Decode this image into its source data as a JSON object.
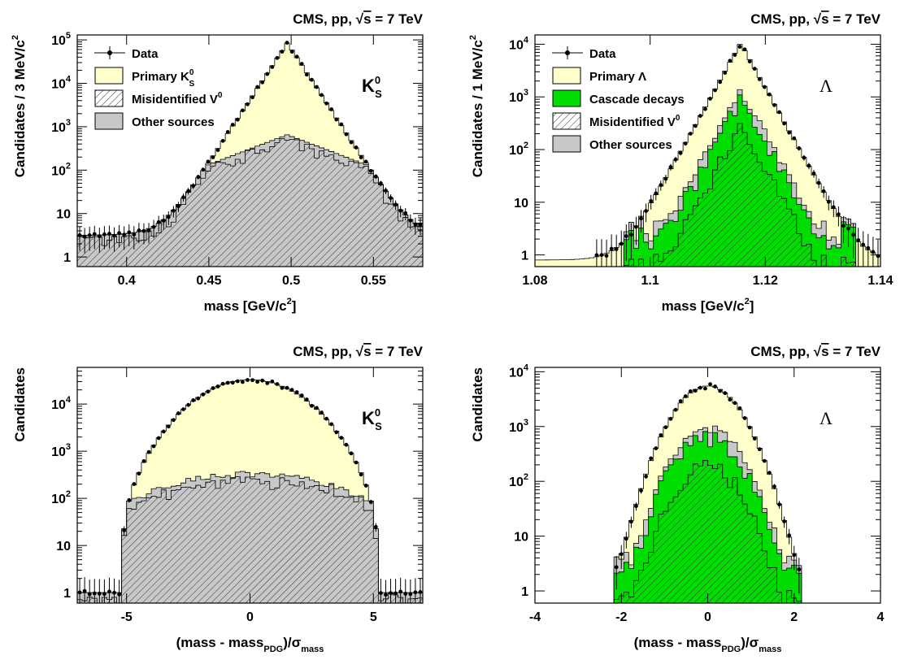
{
  "colors": {
    "primary": "#ffffcc",
    "cascade": "#00dd00",
    "other": "#c8c8c8",
    "hatch_line": "#333333",
    "data": "#000000"
  },
  "chart_data": [
    {
      "type": "histogram",
      "id": "k0s-mass",
      "title": "CMS, pp, √s = 7 TeV",
      "title_parts": {
        "prefix": "CMS, pp, ",
        "sqrt_arg": "s",
        "suffix": " = 7 TeV"
      },
      "particle_label": {
        "main": "K",
        "sup": "0",
        "sub": "S"
      },
      "xlabel": {
        "main": "mass [GeV/c",
        "sup": "2",
        "end": "]"
      },
      "ylabel": {
        "main": "Candidates / 3 MeV/c",
        "sup": "2"
      },
      "x_range": [
        0.37,
        0.58
      ],
      "y_scale": "log",
      "y_range": [
        0.6,
        130000
      ],
      "x_ticks": [
        {
          "value": 0.4,
          "label": "0.4"
        },
        {
          "value": 0.45,
          "label": "0.45"
        },
        {
          "value": 0.5,
          "label": "0.5"
        },
        {
          "value": 0.55,
          "label": "0.55"
        }
      ],
      "y_ticks": [
        {
          "value": 1,
          "label": "1"
        },
        {
          "value": 10,
          "label": "10"
        },
        {
          "value": 100,
          "label": "10",
          "sup": "2"
        },
        {
          "value": 1000,
          "label": "10",
          "sup": "3"
        },
        {
          "value": 10000,
          "label": "10",
          "sup": "4"
        },
        {
          "value": 100000,
          "label": "10",
          "sup": "5"
        }
      ],
      "legend_position": "top-left",
      "legend": [
        {
          "key": "data",
          "label": "Data"
        },
        {
          "key": "primary",
          "label": "Primary K",
          "sup": "0",
          "sub": "S"
        },
        {
          "key": "misid",
          "label": "Misidentified V",
          "sup": "0"
        },
        {
          "key": "other",
          "label": "Other sources"
        }
      ],
      "peak": 0.4976,
      "peak_height": 90000,
      "shape": "k0s",
      "background_peak": 650,
      "cascade_peak": 0
    },
    {
      "type": "histogram",
      "id": "lambda-mass",
      "title": "CMS, pp, √s = 7 TeV",
      "title_parts": {
        "prefix": "CMS, pp, ",
        "sqrt_arg": "s",
        "suffix": " = 7 TeV"
      },
      "particle_label": {
        "main": "Λ",
        "sup": "",
        "sub": ""
      },
      "xlabel": {
        "main": "mass [GeV/c",
        "sup": "2",
        "end": "]"
      },
      "ylabel": {
        "main": "Candidates / 1 MeV/c",
        "sup": "2"
      },
      "x_range": [
        1.08,
        1.14
      ],
      "y_scale": "log",
      "y_range": [
        0.6,
        15000
      ],
      "x_ticks": [
        {
          "value": 1.08,
          "label": "1.08"
        },
        {
          "value": 1.1,
          "label": "1.1"
        },
        {
          "value": 1.12,
          "label": "1.12"
        },
        {
          "value": 1.14,
          "label": "1.14"
        }
      ],
      "y_ticks": [
        {
          "value": 1,
          "label": "1"
        },
        {
          "value": 10,
          "label": "10"
        },
        {
          "value": 100,
          "label": "10",
          "sup": "2"
        },
        {
          "value": 1000,
          "label": "10",
          "sup": "3"
        },
        {
          "value": 10000,
          "label": "10",
          "sup": "4"
        }
      ],
      "legend_position": "top-left",
      "legend": [
        {
          "key": "data",
          "label": "Data"
        },
        {
          "key": "primary",
          "label": "Primary Λ"
        },
        {
          "key": "cascade",
          "label": "Cascade decays"
        },
        {
          "key": "misid",
          "label": "Misidentified V",
          "sup": "0"
        },
        {
          "key": "other",
          "label": "Other sources"
        }
      ],
      "peak": 1.1157,
      "peak_height": 10500,
      "shape": "lambda",
      "background_peak": 1400,
      "cascade_peak": 1000
    },
    {
      "type": "histogram",
      "id": "k0s-pull",
      "title": "CMS, pp, √s = 7 TeV",
      "title_parts": {
        "prefix": "CMS, pp, ",
        "sqrt_arg": "s",
        "suffix": " = 7 TeV"
      },
      "particle_label": {
        "main": "K",
        "sup": "0",
        "sub": "S"
      },
      "xlabel": {
        "main": "(mass - mass",
        "sub": "PDG",
        "end": ")/σ",
        "sub2": "mass"
      },
      "ylabel": {
        "main": "Candidates",
        "sup": ""
      },
      "x_range": [
        -7,
        7
      ],
      "y_scale": "log",
      "y_range": [
        0.6,
        60000
      ],
      "x_ticks": [
        {
          "value": -5,
          "label": "-5"
        },
        {
          "value": 0,
          "label": "0"
        },
        {
          "value": 5,
          "label": "5"
        }
      ],
      "y_ticks": [
        {
          "value": 1,
          "label": "1"
        },
        {
          "value": 10,
          "label": "10"
        },
        {
          "value": 100,
          "label": "10",
          "sup": "2"
        },
        {
          "value": 1000,
          "label": "10",
          "sup": "3"
        },
        {
          "value": 10000,
          "label": "10",
          "sup": "4"
        }
      ],
      "legend_position": "none",
      "legend": [],
      "peak": 0,
      "peak_height": 33000,
      "shape": "k0s-pull",
      "background_peak": 330,
      "cascade_peak": 0
    },
    {
      "type": "histogram",
      "id": "lambda-pull",
      "title": "CMS, pp, √s = 7 TeV",
      "title_parts": {
        "prefix": "CMS, pp, ",
        "sqrt_arg": "s",
        "suffix": " = 7 TeV"
      },
      "particle_label": {
        "main": "Λ",
        "sup": "",
        "sub": ""
      },
      "xlabel": {
        "main": "(mass - mass",
        "sub": "PDG",
        "end": ")/σ",
        "sub2": "mass"
      },
      "ylabel": {
        "main": "Candidates",
        "sup": ""
      },
      "x_range": [
        -4,
        4
      ],
      "y_scale": "log",
      "y_range": [
        0.6,
        12000
      ],
      "x_ticks": [
        {
          "value": -4,
          "label": "-4"
        },
        {
          "value": -2,
          "label": "-2"
        },
        {
          "value": 0,
          "label": "0"
        },
        {
          "value": 2,
          "label": "2"
        },
        {
          "value": 4,
          "label": "4"
        }
      ],
      "y_ticks": [
        {
          "value": 1,
          "label": "1"
        },
        {
          "value": 10,
          "label": "10"
        },
        {
          "value": 100,
          "label": "10",
          "sup": "2"
        },
        {
          "value": 1000,
          "label": "10",
          "sup": "3"
        },
        {
          "value": 10000,
          "label": "10",
          "sup": "4"
        }
      ],
      "legend_position": "none",
      "legend": [],
      "peak": 0,
      "peak_height": 5500,
      "shape": "lambda-pull",
      "background_peak": 900,
      "cascade_peak": 700
    }
  ]
}
